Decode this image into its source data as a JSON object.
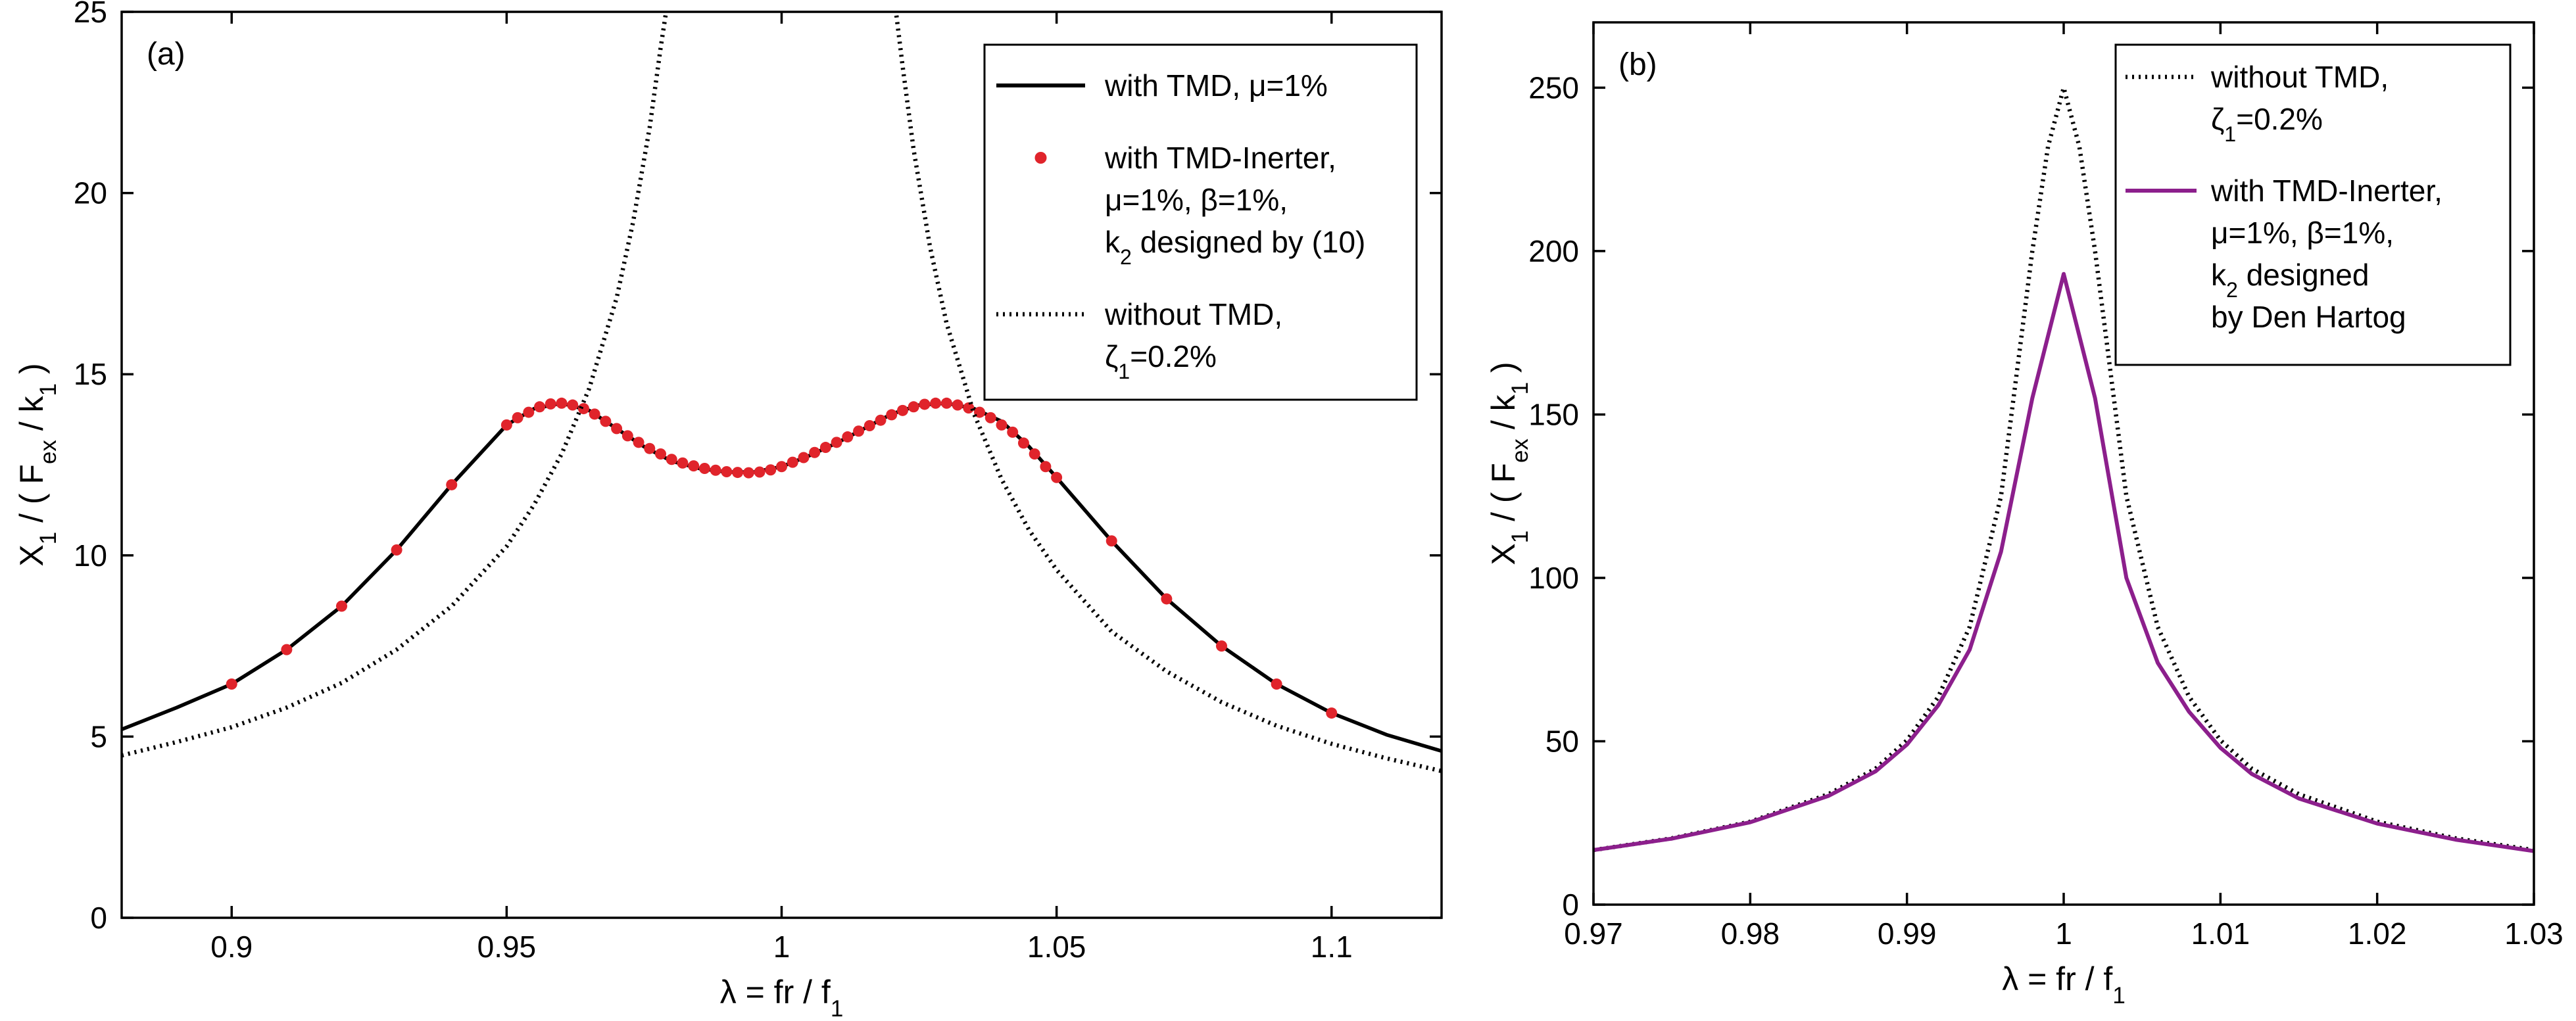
{
  "chart_data": [
    {
      "type": "line",
      "panel": "(a)",
      "xlabel": "λ = fr / f1",
      "ylabel": "X1 / ( Fex / k1 )",
      "xlim": [
        0.88,
        1.12
      ],
      "ylim": [
        0,
        25
      ],
      "xticks": [
        0.9,
        0.95,
        1,
        1.05,
        1.1
      ],
      "xtick_labels": [
        "0.9",
        "0.95",
        "1",
        "1.05",
        "1.1"
      ],
      "yticks": [
        0,
        5,
        10,
        15,
        20,
        25
      ],
      "ytick_labels": [
        "0",
        "5",
        "10",
        "15",
        "20",
        "25"
      ],
      "grid": false,
      "legend_position": "top-right",
      "legend": [
        {
          "lines": [
            "with TMD, μ=1%"
          ],
          "style": "solid",
          "color": "#000000"
        },
        {
          "lines": [
            "with TMD-Inerter,",
            "μ=1%, β=1%,",
            "k2 designed by (10)"
          ],
          "style": "markers",
          "color": "#e0242b"
        },
        {
          "lines": [
            "without TMD,",
            "ζ1=0.2%"
          ],
          "style": "dotted",
          "color": "#000000"
        }
      ],
      "series": [
        {
          "name": "with TMD, μ=1%",
          "style": "solid",
          "color": "#000000",
          "x": [
            0.88,
            0.89,
            0.9,
            0.91,
            0.92,
            0.93,
            0.94,
            0.95,
            0.955,
            0.96,
            0.965,
            0.97,
            0.975,
            0.98,
            0.985,
            0.99,
            0.995,
            1.0,
            1.005,
            1.01,
            1.015,
            1.02,
            1.025,
            1.03,
            1.035,
            1.04,
            1.045,
            1.05,
            1.06,
            1.07,
            1.08,
            1.09,
            1.1,
            1.11,
            1.12
          ],
          "y": [
            5.2,
            5.8,
            6.45,
            7.4,
            8.6,
            10.15,
            11.95,
            13.6,
            14.05,
            14.2,
            14.0,
            13.5,
            13.0,
            12.6,
            12.4,
            12.3,
            12.3,
            12.45,
            12.75,
            13.1,
            13.5,
            13.9,
            14.15,
            14.2,
            14.05,
            13.7,
            13.0,
            12.15,
            10.4,
            8.8,
            7.5,
            6.45,
            5.65,
            5.05,
            4.6
          ]
        },
        {
          "name": "with TMD-Inerter, μ=1%, β=1%, k2 designed by (10)",
          "style": "markers",
          "color": "#e0242b",
          "x": [
            0.9,
            0.91,
            0.92,
            0.93,
            0.94,
            0.95,
            0.952,
            0.954,
            0.956,
            0.958,
            0.96,
            0.962,
            0.964,
            0.966,
            0.968,
            0.97,
            0.972,
            0.974,
            0.976,
            0.978,
            0.98,
            0.982,
            0.984,
            0.986,
            0.988,
            0.99,
            0.992,
            0.994,
            0.996,
            0.998,
            1.0,
            1.002,
            1.004,
            1.006,
            1.008,
            1.01,
            1.012,
            1.014,
            1.016,
            1.018,
            1.02,
            1.022,
            1.024,
            1.026,
            1.028,
            1.03,
            1.032,
            1.034,
            1.036,
            1.038,
            1.04,
            1.042,
            1.044,
            1.046,
            1.048,
            1.05,
            1.06,
            1.07,
            1.08,
            1.09,
            1.1
          ],
          "y": [
            6.45,
            7.4,
            8.6,
            10.15,
            11.95,
            13.6,
            13.8,
            13.95,
            14.1,
            14.18,
            14.2,
            14.15,
            14.05,
            13.9,
            13.7,
            13.5,
            13.3,
            13.12,
            12.95,
            12.8,
            12.65,
            12.55,
            12.47,
            12.4,
            12.35,
            12.31,
            12.29,
            12.28,
            12.3,
            12.36,
            12.45,
            12.57,
            12.7,
            12.84,
            12.98,
            13.12,
            13.27,
            13.43,
            13.58,
            13.73,
            13.88,
            14.0,
            14.1,
            14.17,
            14.2,
            14.2,
            14.15,
            14.07,
            13.95,
            13.8,
            13.6,
            13.4,
            13.1,
            12.8,
            12.45,
            12.15,
            10.4,
            8.8,
            7.5,
            6.45,
            5.65
          ]
        },
        {
          "name": "without TMD, ζ1=0.2%",
          "style": "dotted",
          "color": "#000000",
          "x": [
            0.88,
            0.89,
            0.9,
            0.91,
            0.92,
            0.93,
            0.94,
            0.95,
            0.955,
            0.96,
            0.965,
            0.97,
            0.973,
            0.976,
            0.978,
            0.98,
            0.9805,
            1.0195,
            1.02,
            1.022,
            1.024,
            1.027,
            1.03,
            1.035,
            1.04,
            1.045,
            1.05,
            1.06,
            1.07,
            1.08,
            1.09,
            1.1,
            1.11,
            1.12
          ],
          "y": [
            4.48,
            4.85,
            5.26,
            5.8,
            6.48,
            7.4,
            8.6,
            10.25,
            11.4,
            12.8,
            14.6,
            17.1,
            19.2,
            21.8,
            24.0,
            26.0,
            26.0,
            26.0,
            26.0,
            23.5,
            21.2,
            18.5,
            16.4,
            13.9,
            12.1,
            10.7,
            9.6,
            7.9,
            6.8,
            5.95,
            5.3,
            4.8,
            4.4,
            4.05
          ]
        }
      ]
    },
    {
      "type": "line",
      "panel": "(b)",
      "xlabel": "λ = fr / f1",
      "ylabel": "X1 / ( Fex / k1 )",
      "xlim": [
        0.97,
        1.03
      ],
      "ylim": [
        0,
        270
      ],
      "xticks": [
        0.97,
        0.98,
        0.99,
        1,
        1.01,
        1.02,
        1.03
      ],
      "xtick_labels": [
        "0.97",
        "0.98",
        "0.99",
        "1",
        "1.01",
        "1.02",
        "1.03"
      ],
      "yticks": [
        0,
        50,
        100,
        150,
        200,
        250
      ],
      "ytick_labels": [
        "0",
        "50",
        "100",
        "150",
        "200",
        "250"
      ],
      "grid": false,
      "legend_position": "top-right",
      "legend": [
        {
          "lines": [
            "without TMD,",
            "ζ1=0.2%"
          ],
          "style": "dotted",
          "color": "#000000"
        },
        {
          "lines": [
            "with TMD-Inerter,",
            "μ=1%, β=1%,",
            "k2 designed",
            "by Den Hartog"
          ],
          "style": "solid",
          "color": "#8c1f8c"
        }
      ],
      "series": [
        {
          "name": "without TMD, ζ1=0.2%",
          "style": "dotted",
          "color": "#000000",
          "x": [
            0.97,
            0.975,
            0.98,
            0.985,
            0.988,
            0.99,
            0.992,
            0.994,
            0.996,
            0.998,
            0.999,
            1.0,
            1.001,
            1.002,
            1.004,
            1.006,
            1.008,
            1.01,
            1.012,
            1.015,
            1.02,
            1.025,
            1.03
          ],
          "y": [
            16.7,
            20.3,
            25.4,
            33.8,
            41.6,
            50.3,
            63.6,
            85.0,
            125.0,
            200.0,
            232.0,
            250.0,
            232.0,
            200.0,
            125.0,
            85.0,
            63.6,
            50.3,
            41.6,
            33.8,
            25.4,
            20.3,
            16.7
          ]
        },
        {
          "name": "with TMD-Inerter, μ=1%, β=1%, k2 designed by Den Hartog",
          "style": "solid",
          "color": "#8c1f8c",
          "x": [
            0.97,
            0.975,
            0.98,
            0.985,
            0.988,
            0.99,
            0.992,
            0.994,
            0.996,
            0.998,
            1.0,
            1.002,
            1.004,
            1.006,
            1.008,
            1.01,
            1.012,
            1.015,
            1.02,
            1.025,
            1.03
          ],
          "y": [
            16.7,
            20.2,
            25.2,
            33.3,
            40.8,
            49.0,
            61.0,
            78.0,
            108.0,
            155.0,
            193.0,
            155.0,
            100.0,
            74.0,
            59.0,
            48.0,
            40.0,
            32.5,
            24.8,
            19.9,
            16.4
          ]
        }
      ]
    }
  ]
}
